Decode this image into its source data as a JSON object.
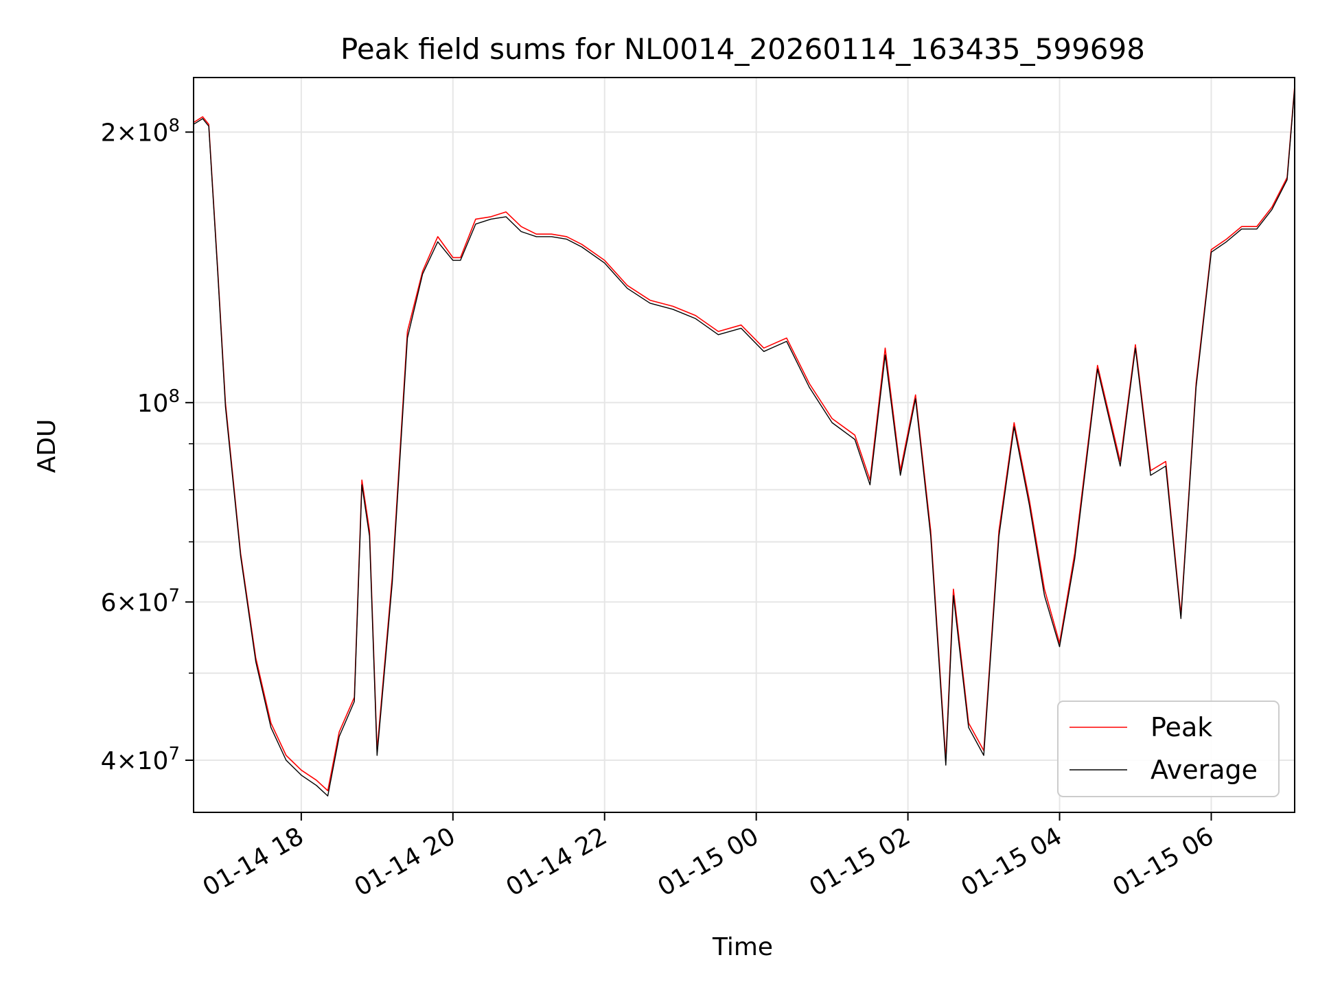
{
  "chart_data": {
    "type": "line",
    "title": "Peak field sums for NL0014_20260114_163435_599698",
    "xlabel": "Time",
    "ylabel": "ADU",
    "grid": true,
    "yscale": "log",
    "ylim": [
      35000000,
      230000000
    ],
    "xlim_hours": [
      16.58,
      31.1
    ],
    "x_unit": "hours since 2026-01-14 00:00",
    "x_ticks": [
      {
        "value": 18,
        "label": "01-14 18"
      },
      {
        "value": 20,
        "label": "01-14 20"
      },
      {
        "value": 22,
        "label": "01-14 22"
      },
      {
        "value": 24,
        "label": "01-15 00"
      },
      {
        "value": 26,
        "label": "01-15 02"
      },
      {
        "value": 28,
        "label": "01-15 04"
      },
      {
        "value": 30,
        "label": "01-15 06"
      }
    ],
    "y_ticks": [
      {
        "value": 40000000,
        "mantissa": "4",
        "label_prefix": "4×10",
        "exponent": "7"
      },
      {
        "value": 60000000,
        "mantissa": "6",
        "label_prefix": "6×10",
        "exponent": "7"
      },
      {
        "value": 100000000,
        "mantissa": "",
        "label_prefix": "10",
        "exponent": "8"
      },
      {
        "value": 200000000,
        "mantissa": "2",
        "label_prefix": "2×10",
        "exponent": "8"
      }
    ],
    "y_minor_ticks": [
      50000000,
      70000000,
      80000000,
      90000000
    ],
    "legend": {
      "position": "lower-right",
      "entries": [
        "Peak",
        "Average"
      ]
    },
    "series": [
      {
        "name": "Peak",
        "color": "#ff0000",
        "x": [
          16.58,
          16.7,
          16.78,
          16.9,
          17.0,
          17.2,
          17.4,
          17.6,
          17.8,
          18.0,
          18.2,
          18.35,
          18.5,
          18.7,
          18.8,
          18.9,
          19.0,
          19.2,
          19.4,
          19.6,
          19.8,
          20.0,
          20.1,
          20.3,
          20.5,
          20.7,
          20.9,
          21.1,
          21.3,
          21.5,
          21.7,
          22.0,
          22.3,
          22.6,
          22.9,
          23.2,
          23.5,
          23.8,
          24.1,
          24.4,
          24.7,
          25.0,
          25.3,
          25.5,
          25.7,
          25.9,
          26.1,
          26.3,
          26.5,
          26.6,
          26.8,
          27.0,
          27.2,
          27.4,
          27.6,
          27.8,
          28.0,
          28.2,
          28.5,
          28.8,
          29.0,
          29.2,
          29.4,
          29.6,
          29.8,
          30.0,
          30.2,
          30.4,
          30.6,
          30.8,
          31.0,
          31.1
        ],
        "values": [
          205000000,
          208000000,
          204000000,
          140000000,
          100000000,
          68000000,
          52000000,
          44000000,
          40500000,
          39000000,
          38000000,
          37000000,
          43000000,
          47000000,
          82000000,
          72000000,
          41000000,
          64000000,
          120000000,
          140000000,
          153000000,
          145000000,
          145000000,
          160000000,
          161000000,
          163000000,
          157000000,
          154000000,
          154000000,
          153000000,
          150000000,
          144000000,
          135000000,
          130000000,
          128000000,
          125000000,
          120000000,
          122000000,
          115000000,
          118000000,
          105000000,
          96000000,
          92000000,
          82000000,
          115000000,
          84000000,
          102000000,
          72000000,
          40000000,
          62000000,
          44000000,
          41000000,
          72000000,
          95000000,
          78000000,
          62000000,
          54000000,
          68000000,
          110000000,
          86000000,
          116000000,
          84000000,
          86000000,
          58000000,
          105000000,
          148000000,
          152000000,
          157000000,
          157000000,
          165000000,
          178000000,
          225000000
        ]
      },
      {
        "name": "Average",
        "color": "#000000",
        "x": [
          16.58,
          16.7,
          16.78,
          16.9,
          17.0,
          17.2,
          17.4,
          17.6,
          17.8,
          18.0,
          18.2,
          18.35,
          18.5,
          18.7,
          18.8,
          18.9,
          19.0,
          19.2,
          19.4,
          19.6,
          19.8,
          20.0,
          20.1,
          20.3,
          20.5,
          20.7,
          20.9,
          21.1,
          21.3,
          21.5,
          21.7,
          22.0,
          22.3,
          22.6,
          22.9,
          23.2,
          23.5,
          23.8,
          24.1,
          24.4,
          24.7,
          25.0,
          25.3,
          25.5,
          25.7,
          25.9,
          26.1,
          26.3,
          26.5,
          26.6,
          26.8,
          27.0,
          27.2,
          27.4,
          27.6,
          27.8,
          28.0,
          28.2,
          28.5,
          28.8,
          29.0,
          29.2,
          29.4,
          29.6,
          29.8,
          30.0,
          30.2,
          30.4,
          30.6,
          30.8,
          31.0,
          31.1
        ],
        "values": [
          204000000,
          207000000,
          203000000,
          139000000,
          99000000,
          67500000,
          51500000,
          43500000,
          40000000,
          38500000,
          37500000,
          36500000,
          42500000,
          46500000,
          81000000,
          71000000,
          40500000,
          63000000,
          118000000,
          139000000,
          151000000,
          144000000,
          144000000,
          158000000,
          160000000,
          161000000,
          155000000,
          153000000,
          153000000,
          152000000,
          149000000,
          143000000,
          134000000,
          129000000,
          127000000,
          124000000,
          119000000,
          121000000,
          114000000,
          117000000,
          104000000,
          95000000,
          91000000,
          81000000,
          113000000,
          83000000,
          101000000,
          71000000,
          39500000,
          61000000,
          43500000,
          40500000,
          71000000,
          94000000,
          77000000,
          61000000,
          53500000,
          67000000,
          109000000,
          85000000,
          115000000,
          83000000,
          85000000,
          57500000,
          104000000,
          147000000,
          151000000,
          156000000,
          156000000,
          164000000,
          177000000,
          224000000
        ]
      }
    ]
  }
}
